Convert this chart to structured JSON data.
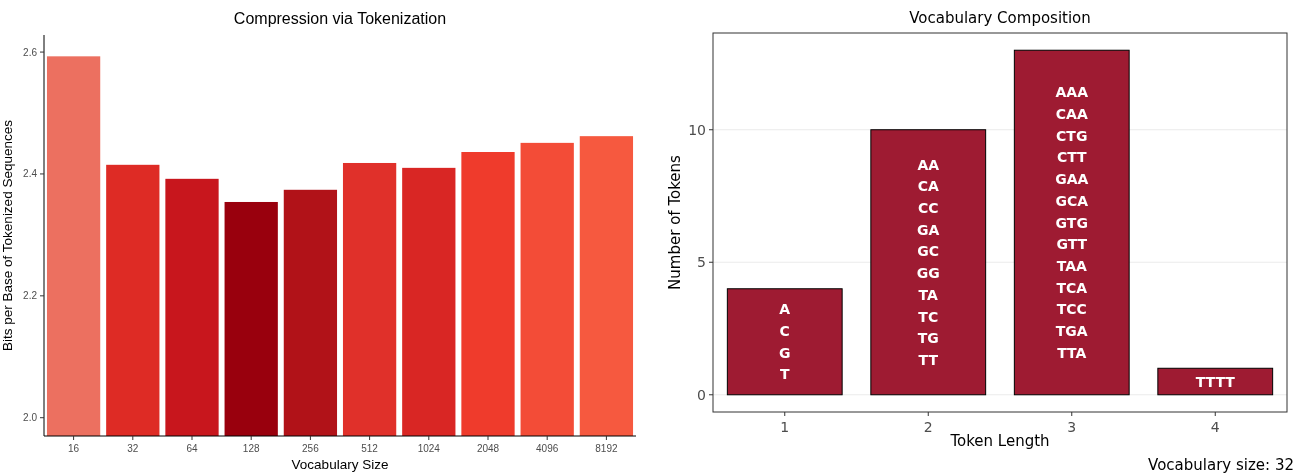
{
  "chart_data": [
    {
      "type": "bar",
      "title": "Compression via Tokenization",
      "xlabel": "Vocabulary Size",
      "ylabel": "Bits per Base of Tokenized Sequences",
      "categories": [
        "16",
        "32",
        "64",
        "128",
        "256",
        "512",
        "1024",
        "2048",
        "4096",
        "8192"
      ],
      "values": [
        2.593,
        2.415,
        2.392,
        2.354,
        2.374,
        2.418,
        2.41,
        2.436,
        2.451,
        2.462
      ],
      "colors": [
        "#ec7060",
        "#de2b25",
        "#c8161d",
        "#99000d",
        "#b11218",
        "#e0302a",
        "#d92624",
        "#ef3b2c",
        "#f34c37",
        "#f6593f"
      ],
      "ylim": [
        1.97,
        2.628
      ],
      "yticks": [
        {
          "value": 2.0,
          "label": "2.0"
        },
        {
          "value": 2.2,
          "label": "2.2"
        },
        {
          "value": 2.4,
          "label": "2.4"
        },
        {
          "value": 2.6,
          "label": "2.6"
        }
      ],
      "grid": false
    },
    {
      "type": "bar",
      "title": "Vocabulary Composition",
      "xlabel": "Token Length",
      "ylabel": "Number of Tokens",
      "categories": [
        "1",
        "2",
        "3",
        "4"
      ],
      "values": [
        4,
        10,
        13,
        1
      ],
      "color": "#9e1b32",
      "value_labels": [
        "A\nC\nG\nT",
        "AA\nCA\nCC\nGA\nGC\nGG\nTA\nTC\nTG\nTT",
        "AAA\nCAA\nCTG\nCTT\nGAA\nGCA\nGTG\nGTT\nTAA\nTCA\nTCC\nTGA\nTTA",
        "TTTT"
      ],
      "ylim": [
        -0.65,
        13.65
      ],
      "yticks": [
        0,
        5,
        10
      ],
      "grid": "y",
      "annotations": [
        "Vocabulary size: 32"
      ]
    }
  ]
}
